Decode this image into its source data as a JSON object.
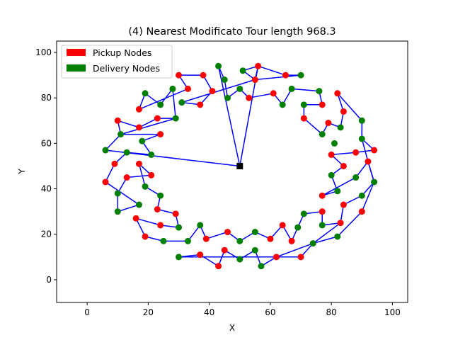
{
  "chart_data": {
    "type": "scatter",
    "title": "(4) Nearest Modificato  Tour length 968.3",
    "xlabel": "X",
    "ylabel": "Y",
    "xlim": [
      -10,
      105
    ],
    "ylim": [
      -10,
      105
    ],
    "xticks": [
      0,
      20,
      40,
      60,
      80,
      100
    ],
    "yticks": [
      0,
      20,
      40,
      60,
      80,
      100
    ],
    "grid": false,
    "legend_position": "top-left",
    "legend": [
      {
        "label": "Pickup Nodes",
        "color": "#ff0000"
      },
      {
        "label": "Delivery Nodes",
        "color": "#008000"
      }
    ],
    "depot": {
      "x": 50,
      "y": 50,
      "color": "#000000",
      "marker": "square"
    },
    "route_color": "#0000ff",
    "pickup_nodes": [
      [
        30,
        90
      ],
      [
        38,
        90
      ],
      [
        33,
        84
      ],
      [
        41,
        83
      ],
      [
        37,
        77
      ],
      [
        56,
        94
      ],
      [
        55,
        88
      ],
      [
        53,
        80
      ],
      [
        61,
        82
      ],
      [
        65,
        90
      ],
      [
        17,
        75
      ],
      [
        23,
        71
      ],
      [
        17,
        67
      ],
      [
        24,
        64
      ],
      [
        10,
        70
      ],
      [
        9,
        51
      ],
      [
        6,
        43
      ],
      [
        13,
        45
      ],
      [
        17,
        51
      ],
      [
        21,
        46
      ],
      [
        23,
        31
      ],
      [
        29,
        29
      ],
      [
        24,
        24
      ],
      [
        16,
        27
      ],
      [
        19,
        19
      ],
      [
        39,
        18
      ],
      [
        46,
        21
      ],
      [
        60,
        18
      ],
      [
        67,
        17
      ],
      [
        64,
        24
      ],
      [
        37,
        11
      ],
      [
        43,
        6
      ],
      [
        45,
        13
      ],
      [
        62,
        10
      ],
      [
        70,
        10
      ],
      [
        77,
        30
      ],
      [
        77,
        37
      ],
      [
        84,
        33
      ],
      [
        83,
        25
      ],
      [
        90,
        30
      ],
      [
        79,
        69
      ],
      [
        77,
        77
      ],
      [
        82,
        82
      ],
      [
        84,
        74
      ],
      [
        71,
        71
      ],
      [
        80,
        55
      ],
      [
        84,
        50
      ],
      [
        88,
        56
      ],
      [
        92,
        52
      ],
      [
        94,
        57
      ]
    ],
    "delivery_nodes": [
      [
        43,
        94
      ],
      [
        45,
        88
      ],
      [
        46,
        80
      ],
      [
        50,
        84
      ],
      [
        51,
        92
      ],
      [
        64,
        77
      ],
      [
        67,
        84
      ],
      [
        70,
        90
      ],
      [
        71,
        77
      ],
      [
        76,
        83
      ],
      [
        19,
        82
      ],
      [
        24,
        77
      ],
      [
        28,
        84
      ],
      [
        29,
        71
      ],
      [
        31,
        78
      ],
      [
        18,
        61
      ],
      [
        21,
        55
      ],
      [
        13,
        56
      ],
      [
        11,
        64
      ],
      [
        6,
        57
      ],
      [
        10,
        38
      ],
      [
        10,
        30
      ],
      [
        17,
        33
      ],
      [
        19,
        41
      ],
      [
        24,
        37
      ],
      [
        25,
        17
      ],
      [
        30,
        23
      ],
      [
        33,
        17
      ],
      [
        37,
        24
      ],
      [
        30,
        10
      ],
      [
        50,
        17
      ],
      [
        55,
        21
      ],
      [
        55,
        13
      ],
      [
        50,
        9
      ],
      [
        57,
        6
      ],
      [
        69,
        23
      ],
      [
        71,
        29
      ],
      [
        77,
        24
      ],
      [
        74,
        16
      ],
      [
        82,
        19
      ],
      [
        77,
        64
      ],
      [
        81,
        60
      ],
      [
        83,
        67
      ],
      [
        90,
        70
      ],
      [
        90,
        62
      ],
      [
        82,
        39
      ],
      [
        80,
        46
      ],
      [
        88,
        45
      ],
      [
        90,
        37
      ],
      [
        94,
        43
      ]
    ],
    "tour": [
      [
        50,
        50
      ],
      [
        43,
        94
      ],
      [
        45,
        88
      ],
      [
        46,
        80
      ],
      [
        50,
        84
      ],
      [
        53,
        80
      ],
      [
        61,
        82
      ],
      [
        64,
        77
      ],
      [
        67,
        84
      ],
      [
        76,
        83
      ],
      [
        77,
        77
      ],
      [
        71,
        77
      ],
      [
        71,
        71
      ],
      [
        77,
        64
      ],
      [
        79,
        69
      ],
      [
        83,
        67
      ],
      [
        84,
        74
      ],
      [
        82,
        82
      ],
      [
        90,
        70
      ],
      [
        90,
        62
      ],
      [
        94,
        57
      ],
      [
        88,
        56
      ],
      [
        80,
        55
      ],
      [
        84,
        50
      ],
      [
        80,
        46
      ],
      [
        82,
        39
      ],
      [
        77,
        37
      ],
      [
        88,
        45
      ],
      [
        92,
        52
      ],
      [
        94,
        43
      ],
      [
        90,
        37
      ],
      [
        84,
        33
      ],
      [
        83,
        25
      ],
      [
        77,
        24
      ],
      [
        77,
        30
      ],
      [
        71,
        29
      ],
      [
        69,
        23
      ],
      [
        67,
        17
      ],
      [
        64,
        24
      ],
      [
        60,
        18
      ],
      [
        55,
        21
      ],
      [
        50,
        17
      ],
      [
        46,
        21
      ],
      [
        39,
        18
      ],
      [
        37,
        24
      ],
      [
        33,
        17
      ],
      [
        25,
        17
      ],
      [
        19,
        19
      ],
      [
        16,
        27
      ],
      [
        24,
        24
      ],
      [
        30,
        23
      ],
      [
        29,
        29
      ],
      [
        23,
        31
      ],
      [
        24,
        37
      ],
      [
        19,
        41
      ],
      [
        17,
        51
      ],
      [
        21,
        46
      ],
      [
        13,
        45
      ],
      [
        10,
        38
      ],
      [
        10,
        30
      ],
      [
        17,
        33
      ],
      [
        6,
        43
      ],
      [
        9,
        51
      ],
      [
        13,
        56
      ],
      [
        21,
        55
      ],
      [
        18,
        61
      ],
      [
        24,
        64
      ],
      [
        11,
        64
      ],
      [
        10,
        70
      ],
      [
        17,
        67
      ],
      [
        23,
        71
      ],
      [
        29,
        71
      ],
      [
        28,
        84
      ],
      [
        24,
        77
      ],
      [
        19,
        82
      ],
      [
        17,
        75
      ],
      [
        33,
        84
      ],
      [
        30,
        90
      ],
      [
        38,
        90
      ],
      [
        41,
        83
      ],
      [
        37,
        77
      ],
      [
        31,
        78
      ],
      [
        55,
        88
      ],
      [
        51,
        92
      ],
      [
        56,
        94
      ],
      [
        65,
        90
      ],
      [
        70,
        90
      ],
      [
        55,
        88
      ],
      [
        56,
        94
      ],
      [
        50,
        50
      ],
      [
        6,
        57
      ],
      [
        11,
        64
      ],
      [
        29,
        71
      ]
    ],
    "tour_lower": [
      [
        30,
        10
      ],
      [
        37,
        11
      ],
      [
        43,
        6
      ],
      [
        45,
        13
      ],
      [
        50,
        9
      ],
      [
        55,
        13
      ],
      [
        57,
        6
      ],
      [
        62,
        10
      ],
      [
        70,
        10
      ],
      [
        74,
        16
      ],
      [
        82,
        19
      ],
      [
        90,
        30
      ],
      [
        94,
        43
      ],
      [
        92,
        52
      ],
      [
        90,
        62
      ],
      [
        90,
        70
      ]
    ],
    "tour_lower2": [
      [
        30,
        10
      ],
      [
        62,
        10
      ],
      [
        74,
        16
      ],
      [
        83,
        25
      ]
    ]
  }
}
